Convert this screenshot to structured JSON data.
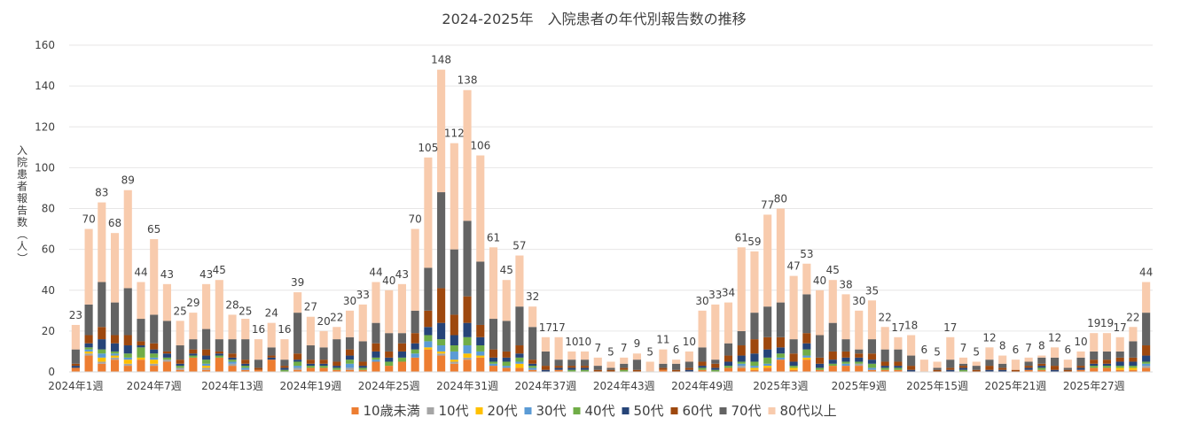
{
  "chart_data": {
    "type": "bar",
    "stacked": true,
    "title": "2024-2025年　入院患者の年代別報告数の推移",
    "ylabel": "入院患者報告数（人）",
    "xlabel": "",
    "ylim": [
      0,
      160
    ],
    "yticks": [
      0,
      20,
      40,
      60,
      80,
      100,
      120,
      140,
      160
    ],
    "grid": true,
    "legend_position": "bottom",
    "x_tick_labels": [
      {
        "index": 0,
        "label": "2024年1週"
      },
      {
        "index": 6,
        "label": "2024年7週"
      },
      {
        "index": 12,
        "label": "2024年13週"
      },
      {
        "index": 18,
        "label": "2024年19週"
      },
      {
        "index": 24,
        "label": "2024年25週"
      },
      {
        "index": 30,
        "label": "2024年31週"
      },
      {
        "index": 36,
        "label": "2024年37週"
      },
      {
        "index": 42,
        "label": "2024年43週"
      },
      {
        "index": 48,
        "label": "2024年49週"
      },
      {
        "index": 54,
        "label": "2025年3週"
      },
      {
        "index": 60,
        "label": "2025年9週"
      },
      {
        "index": 66,
        "label": "2025年15週"
      },
      {
        "index": 72,
        "label": "2025年21週"
      },
      {
        "index": 78,
        "label": "2025年27週"
      }
    ],
    "totals": [
      23,
      70,
      83,
      68,
      89,
      44,
      65,
      43,
      25,
      29,
      43,
      45,
      28,
      25,
      16,
      24,
      16,
      39,
      27,
      20,
      22,
      30,
      33,
      44,
      40,
      43,
      70,
      105,
      148,
      112,
      138,
      106,
      61,
      45,
      57,
      32,
      17,
      17,
      10,
      10,
      7,
      5,
      7,
      9,
      5,
      11,
      6,
      10,
      30,
      33,
      34,
      61,
      59,
      77,
      80,
      47,
      53,
      40,
      45,
      38,
      30,
      35,
      22,
      17,
      18,
      6,
      5,
      17,
      7,
      5,
      12,
      8,
      6,
      7,
      8,
      12,
      6,
      10,
      19,
      19,
      17,
      22,
      44
    ],
    "series": [
      {
        "name": "10歳未満",
        "color": "#ED7D31",
        "values": [
          2,
          8,
          4,
          6,
          3,
          6,
          3,
          5,
          1,
          7,
          1,
          7,
          3,
          1,
          1,
          6,
          0,
          1,
          2,
          2,
          1,
          1,
          1,
          5,
          3,
          5,
          7,
          11,
          8,
          4,
          6,
          7,
          3,
          2,
          2,
          1,
          0,
          1,
          0,
          0,
          0,
          0,
          0,
          0,
          0,
          1,
          0,
          0,
          1,
          0,
          2,
          2,
          1,
          2,
          6,
          1,
          6,
          1,
          3,
          3,
          3,
          1,
          1,
          1,
          0,
          0,
          0,
          0,
          0,
          0,
          0,
          0,
          0,
          1,
          1,
          0,
          0,
          1,
          2,
          2,
          1,
          1,
          2
        ]
      },
      {
        "name": "10代",
        "color": "#A5A5A5",
        "values": [
          0,
          1,
          1,
          1,
          1,
          0,
          1,
          1,
          1,
          0,
          1,
          0,
          1,
          0,
          0,
          0,
          0,
          1,
          0,
          0,
          0,
          1,
          0,
          0,
          0,
          0,
          0,
          0,
          1,
          1,
          1,
          0,
          0,
          0,
          0,
          0,
          0,
          0,
          0,
          0,
          0,
          0,
          0,
          0,
          0,
          0,
          0,
          0,
          0,
          0,
          0,
          1,
          0,
          0,
          0,
          0,
          0,
          0,
          0,
          0,
          1,
          0,
          0,
          0,
          0,
          0,
          0,
          0,
          0,
          0,
          0,
          0,
          0,
          0,
          0,
          0,
          0,
          0,
          0,
          0,
          0,
          0,
          1
        ]
      },
      {
        "name": "20代",
        "color": "#FFC000",
        "values": [
          0,
          1,
          2,
          1,
          2,
          1,
          2,
          0,
          0,
          0,
          1,
          0,
          0,
          0,
          0,
          0,
          0,
          0,
          0,
          0,
          0,
          0,
          0,
          0,
          0,
          0,
          0,
          1,
          1,
          1,
          2,
          1,
          0,
          0,
          2,
          0,
          0,
          0,
          0,
          0,
          0,
          0,
          0,
          0,
          0,
          0,
          0,
          0,
          0,
          0,
          0,
          0,
          1,
          1,
          0,
          1,
          1,
          0,
          0,
          0,
          0,
          0,
          0,
          0,
          0,
          0,
          0,
          0,
          0,
          0,
          0,
          0,
          0,
          0,
          0,
          0,
          0,
          0,
          0,
          0,
          1,
          1,
          0
        ]
      },
      {
        "name": "30代",
        "color": "#5B9BD5",
        "values": [
          0,
          1,
          2,
          1,
          1,
          0,
          1,
          0,
          0,
          0,
          1,
          0,
          1,
          1,
          0,
          0,
          0,
          1,
          0,
          0,
          0,
          2,
          0,
          1,
          0,
          0,
          2,
          3,
          3,
          4,
          4,
          2,
          1,
          1,
          1,
          1,
          0,
          0,
          0,
          0,
          0,
          0,
          0,
          0,
          0,
          0,
          0,
          0,
          0,
          0,
          0,
          1,
          1,
          1,
          1,
          0,
          1,
          0,
          0,
          1,
          0,
          1,
          0,
          0,
          0,
          0,
          0,
          0,
          0,
          0,
          0,
          0,
          0,
          0,
          0,
          0,
          0,
          0,
          0,
          0,
          0,
          0,
          1
        ]
      },
      {
        "name": "40代",
        "color": "#70AD47",
        "values": [
          0,
          1,
          2,
          1,
          2,
          5,
          2,
          1,
          1,
          1,
          2,
          1,
          1,
          1,
          0,
          0,
          1,
          2,
          1,
          1,
          1,
          2,
          1,
          1,
          2,
          2,
          2,
          3,
          3,
          3,
          4,
          3,
          1,
          2,
          2,
          1,
          0,
          0,
          1,
          1,
          0,
          0,
          1,
          0,
          0,
          0,
          0,
          0,
          1,
          1,
          1,
          1,
          2,
          3,
          2,
          1,
          3,
          1,
          1,
          1,
          1,
          2,
          1,
          1,
          0,
          0,
          0,
          0,
          1,
          0,
          0,
          0,
          0,
          0,
          1,
          0,
          0,
          0,
          1,
          1,
          1,
          1,
          1
        ]
      },
      {
        "name": "50代",
        "color": "#264478",
        "values": [
          1,
          2,
          5,
          4,
          4,
          1,
          2,
          2,
          1,
          1,
          2,
          1,
          1,
          1,
          0,
          1,
          1,
          1,
          1,
          1,
          1,
          2,
          1,
          3,
          2,
          3,
          3,
          4,
          8,
          5,
          7,
          4,
          2,
          2,
          2,
          1,
          1,
          1,
          1,
          1,
          0,
          0,
          0,
          0,
          0,
          0,
          0,
          1,
          1,
          1,
          2,
          3,
          4,
          4,
          3,
          2,
          3,
          2,
          2,
          2,
          2,
          2,
          1,
          1,
          1,
          0,
          0,
          1,
          1,
          0,
          1,
          1,
          0,
          1,
          1,
          1,
          0,
          1,
          1,
          1,
          2,
          2,
          3
        ]
      },
      {
        "name": "60代",
        "color": "#9E480E",
        "values": [
          1,
          4,
          6,
          4,
          5,
          2,
          3,
          1,
          2,
          2,
          3,
          1,
          2,
          2,
          1,
          1,
          1,
          3,
          2,
          2,
          2,
          3,
          2,
          4,
          3,
          4,
          5,
          8,
          17,
          10,
          13,
          6,
          4,
          3,
          4,
          2,
          2,
          1,
          1,
          1,
          1,
          1,
          1,
          1,
          0,
          1,
          1,
          1,
          2,
          2,
          3,
          5,
          7,
          6,
          5,
          4,
          5,
          3,
          4,
          3,
          2,
          3,
          2,
          2,
          2,
          0,
          1,
          1,
          1,
          1,
          2,
          1,
          1,
          1,
          1,
          2,
          1,
          1,
          2,
          2,
          2,
          2,
          5
        ]
      },
      {
        "name": "70代",
        "color": "#636363",
        "values": [
          7,
          15,
          22,
          16,
          23,
          11,
          14,
          15,
          7,
          5,
          10,
          6,
          7,
          10,
          4,
          4,
          3,
          20,
          7,
          6,
          11,
          6,
          10,
          10,
          9,
          5,
          11,
          21,
          47,
          32,
          37,
          31,
          15,
          15,
          19,
          16,
          7,
          3,
          3,
          3,
          2,
          1,
          2,
          5,
          0,
          2,
          3,
          3,
          7,
          2,
          6,
          7,
          13,
          15,
          17,
          7,
          19,
          11,
          14,
          6,
          2,
          7,
          6,
          6,
          5,
          0,
          1,
          4,
          1,
          2,
          3,
          2,
          0,
          2,
          3,
          4,
          1,
          4,
          4,
          4,
          3,
          8,
          16
        ]
      },
      {
        "name": "80代以上",
        "color": "#F8CBAD",
        "values": [
          12,
          37,
          39,
          34,
          48,
          18,
          37,
          18,
          12,
          13,
          22,
          29,
          12,
          10,
          10,
          12,
          10,
          10,
          14,
          8,
          6,
          13,
          18,
          20,
          21,
          24,
          40,
          54,
          60,
          52,
          64,
          52,
          35,
          20,
          25,
          10,
          7,
          11,
          4,
          4,
          4,
          3,
          3,
          3,
          5,
          7,
          2,
          5,
          18,
          27,
          20,
          41,
          30,
          45,
          46,
          31,
          15,
          22,
          21,
          22,
          19,
          19,
          11,
          6,
          10,
          6,
          3,
          11,
          3,
          2,
          6,
          4,
          5,
          2,
          1,
          5,
          4,
          3,
          9,
          9,
          7,
          7,
          15
        ]
      }
    ]
  }
}
